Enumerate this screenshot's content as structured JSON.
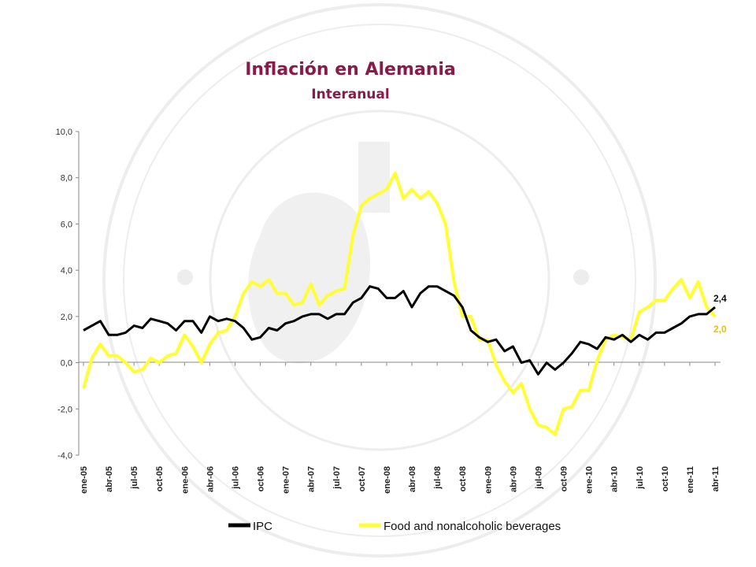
{
  "chart_data": {
    "type": "line",
    "title": "Inflación en Alemania",
    "subtitle": "Interanual",
    "ylim": [
      -4,
      10
    ],
    "y_ticks": [
      "10,0",
      "8,0",
      "6,0",
      "4,0",
      "2,0",
      "0,0",
      "-2,0",
      "-4,0"
    ],
    "x_tick_labels": [
      "ene-05",
      "abr-05",
      "jul-05",
      "oct-05",
      "ene-06",
      "abr-06",
      "jul-06",
      "oct-06",
      "ene-07",
      "abr-07",
      "jul-07",
      "oct-07",
      "ene-08",
      "abr-08",
      "jul-08",
      "oct-08",
      "ene-09",
      "abr-09",
      "jul-09",
      "oct-09",
      "ene-10",
      "abr-10",
      "jul-10",
      "oct-10",
      "ene-11",
      "abr-11"
    ],
    "x_start": "ene-05",
    "x_end": "may-11",
    "grid": false,
    "legend_position": "bottom",
    "series": [
      {
        "name": "IPC",
        "color": "#000000",
        "end_label": "2,4",
        "values": [
          1.4,
          1.6,
          1.8,
          1.2,
          1.2,
          1.3,
          1.6,
          1.5,
          1.9,
          1.8,
          1.7,
          1.4,
          1.8,
          1.8,
          1.3,
          2.0,
          1.8,
          1.9,
          1.8,
          1.5,
          1.0,
          1.1,
          1.5,
          1.4,
          1.7,
          1.8,
          2.0,
          2.1,
          2.1,
          1.9,
          2.1,
          2.1,
          2.6,
          2.8,
          3.3,
          3.2,
          2.8,
          2.8,
          3.1,
          2.4,
          3.0,
          3.3,
          3.3,
          3.1,
          2.9,
          2.4,
          1.4,
          1.1,
          0.9,
          1.0,
          0.5,
          0.7,
          0.0,
          0.1,
          -0.5,
          0.0,
          -0.3,
          0.0,
          0.4,
          0.9,
          0.8,
          0.6,
          1.1,
          1.0,
          1.2,
          0.9,
          1.2,
          1.0,
          1.3,
          1.3,
          1.5,
          1.7,
          2.0,
          2.1,
          2.1,
          2.4
        ]
      },
      {
        "name": "Food and nonalcoholic beverages",
        "color": "#ffff33",
        "end_label": "2,0",
        "values": [
          -1.1,
          0.2,
          0.8,
          0.3,
          0.3,
          0.0,
          -0.4,
          -0.3,
          0.2,
          0.0,
          0.3,
          0.4,
          1.2,
          0.7,
          0.0,
          0.8,
          1.3,
          1.4,
          2.0,
          3.0,
          3.5,
          3.3,
          3.6,
          3.0,
          3.0,
          2.5,
          2.6,
          3.4,
          2.5,
          2.9,
          3.1,
          3.2,
          5.5,
          6.8,
          7.1,
          7.3,
          7.5,
          8.2,
          7.1,
          7.5,
          7.1,
          7.4,
          6.9,
          6.0,
          3.5,
          2.0,
          2.0,
          1.0,
          1.0,
          -0.1,
          -0.8,
          -1.3,
          -0.9,
          -2.0,
          -2.7,
          -2.8,
          -3.1,
          -2.0,
          -1.9,
          -1.2,
          -1.2,
          0.1,
          1.0,
          1.2,
          1.1,
          1.0,
          2.2,
          2.4,
          2.7,
          2.7,
          3.2,
          3.6,
          2.8,
          3.5,
          2.4,
          2.0
        ]
      }
    ]
  }
}
